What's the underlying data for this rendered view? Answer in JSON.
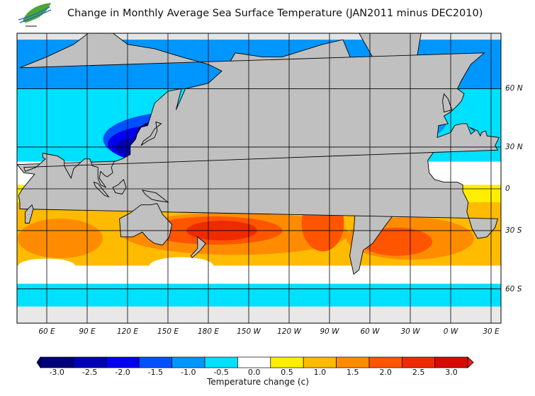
{
  "title": "Change in Monthly Average Sea Surface Temperature (JAN2011 minus DEC2010)",
  "logo": {
    "icon": "leaf-wave-logo"
  },
  "map": {
    "projection": "mercator",
    "land_color": "#c0c0c0",
    "ice_color": "#e4e4e4",
    "longitude_labels": [
      "60 E",
      "90 E",
      "120 E",
      "150 E",
      "180 E",
      "150 W",
      "120 W",
      "90 W",
      "60 W",
      "30 W",
      "0 W",
      "30 E"
    ],
    "longitude_values": [
      60,
      90,
      120,
      150,
      180,
      210,
      240,
      270,
      300,
      330,
      360,
      390
    ],
    "latitude_labels": [
      "60 N",
      "30 N",
      "0",
      "30 S",
      "60 S"
    ],
    "latitude_values": [
      60,
      30,
      0,
      -30,
      -60
    ]
  },
  "colorbar": {
    "title": "Temperature change  (c)",
    "labels": [
      "-3.0",
      "-2.5",
      "-2.0",
      "-1.5",
      "-1.0",
      "-0.5",
      "0.0",
      "0.5",
      "1.0",
      "1.5",
      "2.0",
      "2.5",
      "3.0"
    ],
    "colors": [
      "#000078",
      "#0000b4",
      "#0000f0",
      "#0050ff",
      "#0096ff",
      "#00e0ff",
      "#ffffff",
      "#ffee00",
      "#ffbb00",
      "#ff8c00",
      "#ff5500",
      "#f02a00",
      "#d60a00"
    ],
    "under_color": "#000078",
    "over_color": "#e02020"
  }
}
